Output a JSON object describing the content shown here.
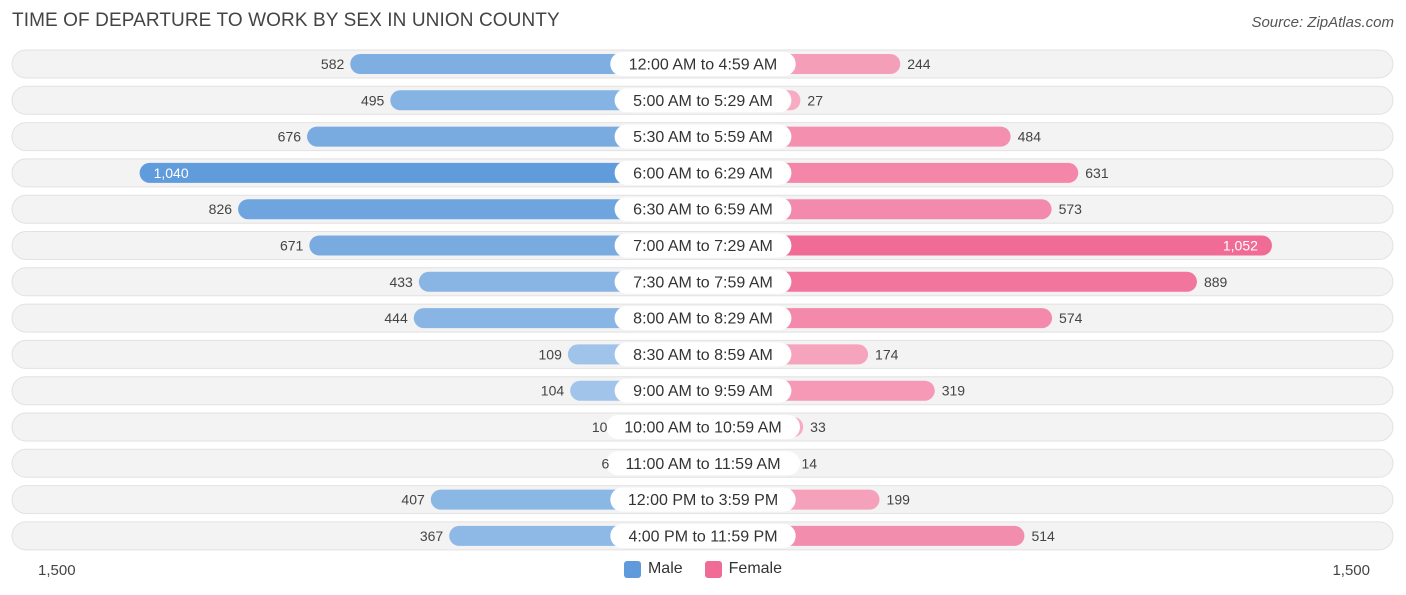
{
  "header": {
    "title": "TIME OF DEPARTURE TO WORK BY SEX IN UNION COUNTY",
    "source": "Source: ZipAtlas.com"
  },
  "colors": {
    "male": "#5f9bdb",
    "female": "#f06b96",
    "row_bg": "#f3f3f3"
  },
  "axis": {
    "left_label": "1,500",
    "right_label": "1,500"
  },
  "legend": {
    "male": "Male",
    "female": "Female"
  },
  "chart_data": {
    "type": "bar",
    "orientation": "horizontal-diverging",
    "title": "TIME OF DEPARTURE TO WORK BY SEX IN UNION COUNTY",
    "xlim": [
      -1500,
      1500
    ],
    "categories": [
      "12:00 AM to 4:59 AM",
      "5:00 AM to 5:29 AM",
      "5:30 AM to 5:59 AM",
      "6:00 AM to 6:29 AM",
      "6:30 AM to 6:59 AM",
      "7:00 AM to 7:29 AM",
      "7:30 AM to 7:59 AM",
      "8:00 AM to 8:29 AM",
      "8:30 AM to 8:59 AM",
      "9:00 AM to 9:59 AM",
      "10:00 AM to 10:59 AM",
      "11:00 AM to 11:59 AM",
      "12:00 PM to 3:59 PM",
      "4:00 PM to 11:59 PM"
    ],
    "series": [
      {
        "name": "Male",
        "values": [
          582,
          495,
          676,
          1040,
          826,
          671,
          433,
          444,
          109,
          104,
          10,
          6,
          407,
          367
        ],
        "labels": [
          "582",
          "495",
          "676",
          "1,040",
          "826",
          "671",
          "433",
          "444",
          "109",
          "104",
          "10",
          "6",
          "407",
          "367"
        ]
      },
      {
        "name": "Female",
        "values": [
          244,
          27,
          484,
          631,
          573,
          1052,
          889,
          574,
          174,
          319,
          33,
          14,
          199,
          514
        ],
        "labels": [
          "244",
          "27",
          "484",
          "631",
          "573",
          "1,052",
          "889",
          "574",
          "174",
          "319",
          "33",
          "14",
          "199",
          "514"
        ]
      }
    ]
  }
}
